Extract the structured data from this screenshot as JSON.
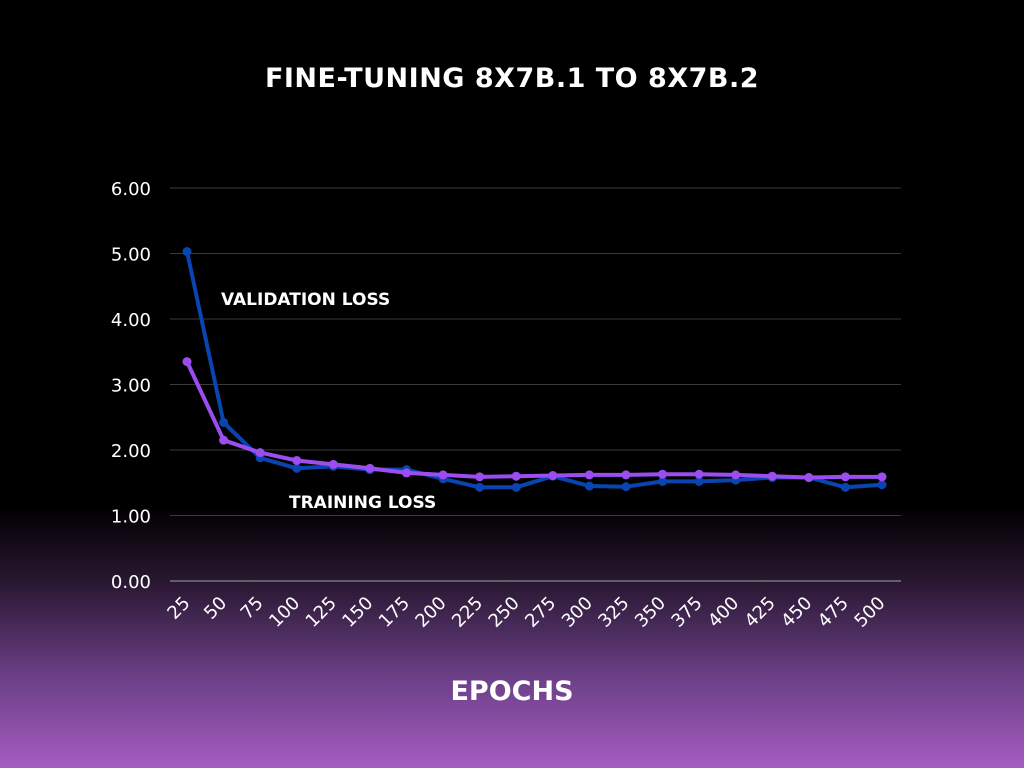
{
  "chart_data": {
    "type": "line",
    "title": "FINE-TUNING 8X7B.1 TO 8X7B.2",
    "xlabel": "EPOCHS",
    "ylabel": "",
    "ylim": [
      0,
      6
    ],
    "yticks": [
      "0.00",
      "1.00",
      "2.00",
      "3.00",
      "4.00",
      "5.00",
      "6.00"
    ],
    "grid": true,
    "legend": "none",
    "x": [
      "25",
      "50",
      "75",
      "100",
      "125",
      "150",
      "175",
      "200",
      "225",
      "250",
      "275",
      "300",
      "325",
      "350",
      "375",
      "400",
      "425",
      "450",
      "475",
      "500"
    ],
    "series": [
      {
        "color": "#0a44b0",
        "values": [
          5.03,
          2.42,
          1.88,
          1.72,
          1.75,
          1.7,
          1.7,
          1.56,
          1.43,
          1.43,
          1.6,
          1.45,
          1.44,
          1.52,
          1.52,
          1.54,
          1.58,
          1.58,
          1.43,
          1.47
        ]
      },
      {
        "color": "#9b4df0",
        "values": [
          3.35,
          2.15,
          1.96,
          1.84,
          1.78,
          1.72,
          1.65,
          1.62,
          1.59,
          1.6,
          1.61,
          1.62,
          1.62,
          1.63,
          1.63,
          1.62,
          1.6,
          1.58,
          1.59,
          1.59
        ]
      }
    ],
    "annotations": [
      "VALIDATION LOSS",
      "TRAINING LOSS"
    ]
  }
}
